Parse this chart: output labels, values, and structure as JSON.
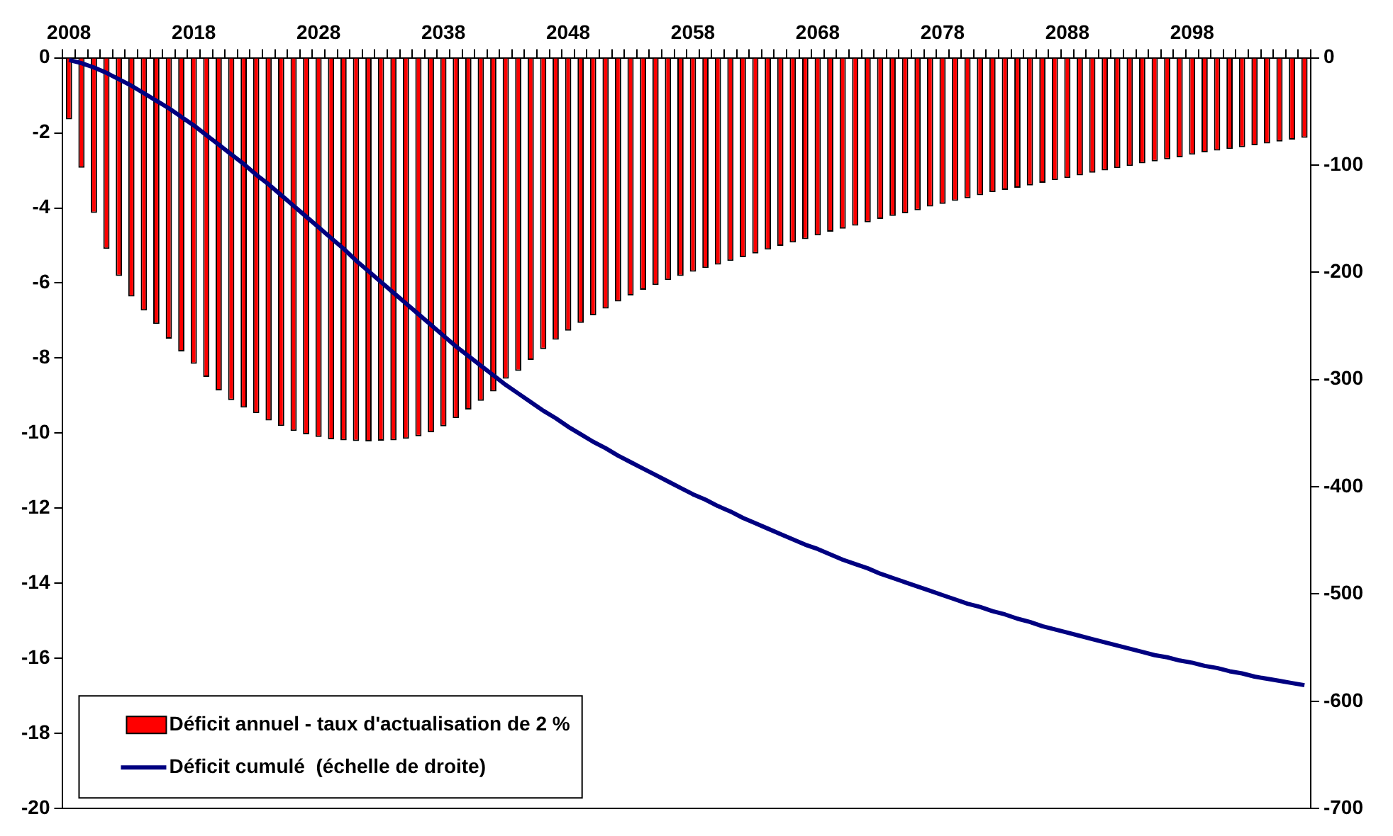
{
  "chart_data": {
    "type": "bar",
    "legend": "bottom left",
    "grid": false,
    "categories": [
      "2008",
      null,
      null,
      null,
      null,
      null,
      null,
      null,
      null,
      null,
      "2018",
      null,
      null,
      null,
      null,
      null,
      null,
      null,
      null,
      null,
      "2028",
      null,
      null,
      null,
      null,
      null,
      null,
      null,
      null,
      null,
      "2038",
      null,
      null,
      null,
      null,
      null,
      null,
      null,
      null,
      null,
      "2048",
      null,
      null,
      null,
      null,
      null,
      null,
      null,
      null,
      null,
      "2058",
      null,
      null,
      null,
      null,
      null,
      null,
      null,
      null,
      null,
      "2068",
      null,
      null,
      null,
      null,
      null,
      null,
      null,
      null,
      null,
      "2078",
      null,
      null,
      null,
      null,
      null,
      null,
      null,
      null,
      null,
      "2088",
      null,
      null,
      null,
      null,
      null,
      null,
      null,
      null,
      null,
      "2098",
      null,
      null,
      null,
      null,
      null,
      null,
      null,
      null,
      null
    ],
    "ylim": [
      -20,
      0
    ],
    "yticks": [
      0,
      -2,
      -4,
      -6,
      -8,
      -10,
      -12,
      -14,
      -16,
      -18,
      -20
    ],
    "y2lim": [
      -700,
      0
    ],
    "y2ticks": [
      0,
      -100,
      -200,
      -300,
      -400,
      -500,
      -600,
      -700
    ],
    "series": [
      {
        "name": "Déficit annuel - taux d'actualisation de 2 %",
        "color": "#ff0000",
        "values": [
          -1.64,
          -2.93,
          -4.13,
          -5.09,
          -5.81,
          -6.36,
          -6.73,
          -7.09,
          -7.48,
          -7.82,
          -8.15,
          -8.5,
          -8.86,
          -9.12,
          -9.32,
          -9.47,
          -9.66,
          -9.81,
          -9.94,
          -10.03,
          -10.1,
          -10.16,
          -10.19,
          -10.21,
          -10.22,
          -10.2,
          -10.19,
          -10.15,
          -10.08,
          -9.98,
          -9.82,
          -9.6,
          -9.37,
          -9.14,
          -8.89,
          -8.55,
          -8.34,
          -8.05,
          -7.76,
          -7.51,
          -7.27,
          -7.06,
          -6.86,
          -6.68,
          -6.49,
          -6.33,
          -6.18,
          -6.05,
          -5.92,
          -5.81,
          -5.7,
          -5.6,
          -5.51,
          -5.41,
          -5.31,
          -5.21,
          -5.11,
          -5.01,
          -4.92,
          -4.83,
          -4.73,
          -4.63,
          -4.55,
          -4.47,
          -4.38,
          -4.29,
          -4.21,
          -4.14,
          -4.06,
          -3.96,
          -3.89,
          -3.81,
          -3.74,
          -3.66,
          -3.58,
          -3.52,
          -3.46,
          -3.4,
          -3.33,
          -3.26,
          -3.2,
          -3.13,
          -3.06,
          -3.0,
          -2.94,
          -2.88,
          -2.81,
          -2.76,
          -2.7,
          -2.65,
          -2.58,
          -2.52,
          -2.47,
          -2.43,
          -2.38,
          -2.33,
          -2.28,
          -2.23,
          -2.18,
          -2.13
        ]
      },
      {
        "name": "Déficit cumulé  (échelle de droite)",
        "type": "line",
        "axis": "y2",
        "color": "#000080",
        "values": [
          -2,
          -5,
          -9,
          -14,
          -20,
          -26,
          -33,
          -40,
          -47,
          -55,
          -63,
          -72,
          -81,
          -90,
          -99,
          -109,
          -118,
          -128,
          -138,
          -148,
          -158,
          -168,
          -178,
          -189,
          -199,
          -209,
          -219,
          -229,
          -239,
          -249,
          -259,
          -269,
          -278,
          -287,
          -296,
          -305,
          -313,
          -321,
          -329,
          -336,
          -344,
          -351,
          -358,
          -364,
          -371,
          -377,
          -383,
          -389,
          -395,
          -401,
          -407,
          -412,
          -418,
          -423,
          -429,
          -434,
          -439,
          -444,
          -449,
          -454,
          -458,
          -463,
          -468,
          -472,
          -476,
          -481,
          -485,
          -489,
          -493,
          -497,
          -501,
          -505,
          -509,
          -512,
          -516,
          -519,
          -523,
          -526,
          -530,
          -533,
          -536,
          -539,
          -542,
          -545,
          -548,
          -551,
          -554,
          -557,
          -559,
          -562,
          -564,
          -567,
          -569,
          -572,
          -574,
          -577,
          -579,
          -581,
          -583,
          -585
        ]
      }
    ]
  }
}
